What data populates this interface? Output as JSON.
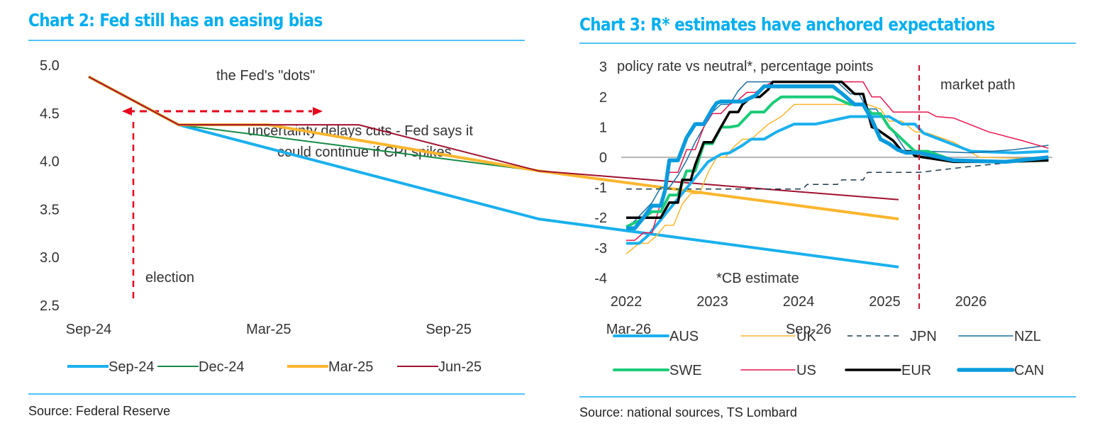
{
  "colors": {
    "title": "#00AEEF",
    "rule": "#4FC3F7",
    "annotation_red": "#E8001C",
    "market_path_red": "#C8102E",
    "zero_line": "#8c8c8c"
  },
  "chart_data": [
    {
      "type": "line",
      "title": "Chart 2: Fed still has an easing bias",
      "xlabel": "",
      "ylabel": "",
      "ylim": [
        2.5,
        5.0
      ],
      "yticks": [
        "5.0",
        "4.5",
        "4.0",
        "3.5",
        "3.0",
        "2.5"
      ],
      "ytick_values": [
        5.0,
        4.5,
        4.0,
        3.5,
        3.0,
        2.5
      ],
      "xticks": [
        "Sep-24",
        "Mar-25",
        "Sep-25",
        "Mar-26",
        "Sep-26"
      ],
      "x_unit": "months since Sep-24",
      "xtick_values": [
        0,
        6,
        12,
        18,
        24
      ],
      "xlim": [
        -0.2,
        27.5
      ],
      "grid": false,
      "legend": "bottom",
      "series": [
        {
          "name": "Sep-24",
          "color": "#1AB0EE",
          "width": 4,
          "x": [
            0,
            3,
            15,
            27
          ],
          "y": [
            4.88,
            4.38,
            3.4,
            2.9
          ]
        },
        {
          "name": "Dec-24",
          "color": "#168A45",
          "width": 2,
          "x": [
            0,
            3,
            15,
            27
          ],
          "y": [
            4.88,
            4.38,
            3.9,
            3.4
          ]
        },
        {
          "name": "Mar-25",
          "color": "#FBB62E",
          "width": 4,
          "x": [
            0,
            3,
            6,
            15,
            27
          ],
          "y": [
            4.88,
            4.38,
            4.38,
            3.9,
            3.4
          ]
        },
        {
          "name": "Jun-25",
          "color": "#A0112F",
          "width": 2,
          "x": [
            0,
            3,
            9,
            15,
            27
          ],
          "y": [
            4.88,
            4.38,
            4.38,
            3.9,
            3.6
          ]
        }
      ],
      "annotations": {
        "dots": "the Fed's \"dots\"",
        "uncertainty_line1": "uncertainty delays cuts - Fed says it",
        "uncertainty_line2": "could continue if CPI spikes",
        "election": "election"
      },
      "source": "Source: Federal Reserve"
    },
    {
      "type": "line",
      "title": "Chart 3: R* estimates have anchored expectations",
      "subtitle": "policy rate vs neutral*, percentage points",
      "footnote": "*CB estimate",
      "market_path_label": "market path",
      "market_path_x": 2025.4,
      "xlabel": "",
      "ylabel": "",
      "ylim": [
        -4,
        3
      ],
      "yticks": [
        "3",
        "2",
        "1",
        "0",
        "-1",
        "-2",
        "-3",
        "-4"
      ],
      "ytick_values": [
        3,
        2,
        1,
        0,
        -1,
        -2,
        -3,
        -4
      ],
      "xticks": [
        "2022",
        "2023",
        "2024",
        "2025",
        "2026"
      ],
      "xtick_values": [
        2022,
        2023,
        2024,
        2025,
        2026
      ],
      "xlim": [
        2021.8,
        2027.0
      ],
      "grid": false,
      "legend": "bottom",
      "series": [
        {
          "name": "AUS",
          "color": "#1AB0EE",
          "width": 4,
          "dash": false,
          "x": [
            2022.0,
            2022.15,
            2022.25,
            2022.35,
            2022.45,
            2022.55,
            2022.65,
            2022.75,
            2022.85,
            2022.95,
            2023.1,
            2023.2,
            2023.35,
            2023.45,
            2023.6,
            2023.75,
            2023.95,
            2024.05,
            2024.2,
            2024.6,
            2024.75,
            2024.95,
            2025.05,
            2025.2,
            2025.35,
            2025.45,
            2026.0,
            2026.5,
            2026.9
          ],
          "y": [
            -2.85,
            -2.85,
            -2.6,
            -2.25,
            -1.9,
            -1.55,
            -1.2,
            -0.85,
            -0.5,
            -0.15,
            0.1,
            0.15,
            0.4,
            0.6,
            0.6,
            0.85,
            1.1,
            1.1,
            1.1,
            1.35,
            1.35,
            1.35,
            1.35,
            1.1,
            1.1,
            0.8,
            0.2,
            0.15,
            0.2
          ]
        },
        {
          "name": "UK",
          "color": "#FBB62E",
          "width": 1.5,
          "dash": false,
          "x": [
            2022.0,
            2022.15,
            2022.25,
            2022.35,
            2022.45,
            2022.55,
            2022.65,
            2022.75,
            2022.85,
            2022.95,
            2023.05,
            2023.15,
            2023.25,
            2023.35,
            2023.45,
            2023.55,
            2023.65,
            2023.8,
            2023.95,
            2024.6,
            2024.8,
            2024.95,
            2025.05,
            2025.2,
            2025.35,
            2025.5,
            2025.8,
            2026.1,
            2026.9
          ],
          "y": [
            -3.2,
            -2.85,
            -2.85,
            -2.6,
            -2.25,
            -2.25,
            -1.55,
            -1.2,
            -1.2,
            -0.5,
            0.0,
            0.0,
            0.35,
            0.6,
            0.6,
            0.85,
            1.1,
            1.35,
            1.75,
            1.75,
            1.75,
            1.6,
            1.2,
            1.2,
            0.85,
            0.8,
            0.5,
            0.0,
            -0.05
          ]
        },
        {
          "name": "JPN",
          "color": "#1E3A4A",
          "width": 1.5,
          "dash": true,
          "x": [
            2022.0,
            2024.05,
            2024.1,
            2024.45,
            2024.5,
            2024.75,
            2024.8,
            2025.4,
            2026.0,
            2026.9
          ],
          "y": [
            -1.05,
            -1.05,
            -0.9,
            -0.9,
            -0.75,
            -0.75,
            -0.5,
            -0.5,
            -0.3,
            -0.05
          ]
        },
        {
          "name": "NZL",
          "color": "#1A6FA3",
          "width": 1.5,
          "dash": false,
          "x": [
            2022.0,
            2022.1,
            2022.2,
            2022.3,
            2022.4,
            2022.5,
            2022.6,
            2022.7,
            2022.8,
            2022.9,
            2023.0,
            2023.1,
            2023.2,
            2023.3,
            2023.4,
            2023.5,
            2023.6,
            2023.7,
            2023.8,
            2024.35,
            2024.45,
            2024.6,
            2024.7,
            2024.8,
            2024.9,
            2025.0,
            2025.1,
            2025.25,
            2025.5,
            2026.0,
            2026.5,
            2026.9
          ],
          "y": [
            -2.35,
            -2.1,
            -1.8,
            -1.5,
            -1.0,
            -1.0,
            -0.6,
            -0.1,
            0.5,
            1.0,
            1.5,
            1.75,
            1.75,
            2.2,
            2.5,
            2.5,
            2.5,
            2.5,
            2.5,
            2.5,
            2.5,
            2.1,
            2.1,
            1.6,
            1.6,
            1.2,
            0.85,
            0.2,
            0.2,
            0.15,
            0.25,
            0.4
          ]
        },
        {
          "name": "SWE",
          "color": "#1BCC78",
          "width": 4,
          "dash": false,
          "x": [
            2022.0,
            2022.15,
            2022.3,
            2022.4,
            2022.5,
            2022.6,
            2022.7,
            2022.8,
            2022.9,
            2023.0,
            2023.1,
            2023.2,
            2023.3,
            2023.45,
            2023.6,
            2023.7,
            2023.8,
            2023.95,
            2024.4,
            2024.6,
            2024.75,
            2024.85,
            2024.95,
            2025.05,
            2025.2,
            2025.35,
            2025.5,
            2025.8,
            2026.3,
            2026.9
          ],
          "y": [
            -2.3,
            -2.1,
            -1.8,
            -1.8,
            -1.25,
            -1.25,
            -0.45,
            -0.45,
            0.45,
            0.45,
            1.0,
            1.0,
            1.05,
            1.5,
            1.5,
            1.8,
            2.0,
            2.0,
            2.0,
            1.75,
            1.75,
            1.45,
            1.45,
            1.0,
            0.6,
            0.2,
            0.2,
            -0.1,
            -0.15,
            -0.1
          ]
        },
        {
          "name": "US",
          "color": "#E8174F",
          "width": 1.5,
          "dash": false,
          "x": [
            2022.0,
            2022.1,
            2022.2,
            2022.3,
            2022.4,
            2022.5,
            2022.6,
            2022.7,
            2022.8,
            2022.9,
            2023.0,
            2023.1,
            2023.2,
            2023.3,
            2023.4,
            2023.5,
            2023.6,
            2023.7,
            2023.8,
            2024.65,
            2024.75,
            2024.85,
            2024.95,
            2025.1,
            2025.4,
            2025.5,
            2025.6,
            2025.8,
            2026.2,
            2026.6,
            2026.9
          ],
          "y": [
            -2.75,
            -2.75,
            -2.5,
            -2.5,
            -1.5,
            -0.5,
            -0.5,
            0.25,
            0.25,
            1.0,
            1.45,
            1.45,
            1.75,
            1.9,
            2.15,
            2.15,
            2.35,
            2.5,
            2.5,
            2.5,
            2.5,
            2.0,
            2.0,
            1.5,
            1.5,
            1.5,
            1.35,
            1.3,
            0.85,
            0.55,
            0.3
          ]
        },
        {
          "name": "EUR",
          "color": "#000000",
          "width": 3.5,
          "dash": false,
          "x": [
            2022.0,
            2022.4,
            2022.5,
            2022.6,
            2022.65,
            2022.75,
            2022.8,
            2022.9,
            2023.0,
            2023.1,
            2023.2,
            2023.3,
            2023.35,
            2023.45,
            2023.55,
            2023.65,
            2023.7,
            2023.8,
            2023.95,
            2024.3,
            2024.5,
            2024.65,
            2024.75,
            2024.85,
            2024.9,
            2025.0,
            2025.1,
            2025.2,
            2025.3,
            2025.35,
            2025.45,
            2025.8,
            2026.4,
            2026.9
          ],
          "y": [
            -2.0,
            -2.0,
            -1.5,
            -1.5,
            -0.75,
            -0.75,
            -0.25,
            0.5,
            0.5,
            1.0,
            1.5,
            1.5,
            1.75,
            2.0,
            2.0,
            2.25,
            2.5,
            2.5,
            2.5,
            2.5,
            2.5,
            2.1,
            2.1,
            1.0,
            0.95,
            0.75,
            0.55,
            0.2,
            0.2,
            0.05,
            0.0,
            -0.15,
            -0.15,
            -0.1
          ]
        },
        {
          "name": "CAN",
          "color": "#0A9BDD",
          "width": 5.5,
          "dash": false,
          "x": [
            2022.0,
            2022.1,
            2022.2,
            2022.3,
            2022.4,
            2022.45,
            2022.5,
            2022.6,
            2022.7,
            2022.8,
            2022.9,
            2023.0,
            2023.05,
            2023.1,
            2023.35,
            2023.5,
            2023.6,
            2023.75,
            2024.4,
            2024.55,
            2024.65,
            2024.75,
            2024.85,
            2024.95,
            2025.05,
            2025.15,
            2025.25,
            2025.4,
            2025.8,
            2026.4,
            2026.9
          ],
          "y": [
            -2.35,
            -2.35,
            -2.0,
            -1.6,
            -1.6,
            -1.1,
            -0.1,
            -0.1,
            0.65,
            1.1,
            1.1,
            1.6,
            1.8,
            1.85,
            1.85,
            2.05,
            2.35,
            2.35,
            2.35,
            2.0,
            1.75,
            1.75,
            1.25,
            0.6,
            0.45,
            0.25,
            0.15,
            0.15,
            -0.1,
            -0.15,
            0.0
          ]
        }
      ],
      "source": "Source: national sources, TS Lombard"
    }
  ]
}
